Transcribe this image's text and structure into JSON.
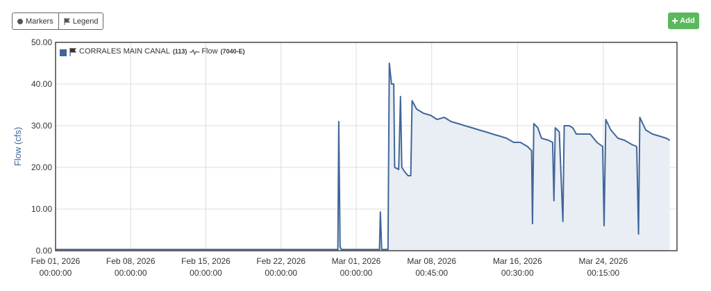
{
  "toolbar": {
    "markers": "Markers",
    "legend": "Legend",
    "add": "Add"
  },
  "chart_data": {
    "type": "line",
    "y_label": "Flow (cfs)",
    "xlim": [
      "2026-02-01T00:00",
      "2026-03-30T21:00"
    ],
    "xticks": [
      {
        "value": "2026-02-01T00:00",
        "label": [
          "Feb 01, 2026",
          "00:00:00"
        ]
      },
      {
        "value": "2026-02-08T00:00",
        "label": [
          "Feb 08, 2026",
          "00:00:00"
        ]
      },
      {
        "value": "2026-02-15T00:00",
        "label": [
          "Feb 15, 2026",
          "00:00:00"
        ]
      },
      {
        "value": "2026-02-22T00:00",
        "label": [
          "Feb 22, 2026",
          "00:00:00"
        ]
      },
      {
        "value": "2026-03-01T00:00",
        "label": [
          "Mar 01, 2026",
          "00:00:00"
        ]
      },
      {
        "value": "2026-03-08T00:45",
        "label": [
          "Mar 08, 2026",
          "00:45:00"
        ]
      },
      {
        "value": "2026-03-16T00:30",
        "label": [
          "Mar 16, 2026",
          "00:30:00"
        ]
      },
      {
        "value": "2026-03-24T00:15",
        "label": [
          "Mar 24, 2026",
          "00:15:00"
        ]
      }
    ],
    "ylim": [
      0,
      50
    ],
    "yticks": [
      {
        "value": 0,
        "label": "0.00"
      },
      {
        "value": 10,
        "label": "10.00"
      },
      {
        "value": 20,
        "label": "20.00"
      },
      {
        "value": 30,
        "label": "30.00"
      },
      {
        "value": 40,
        "label": "40.00"
      },
      {
        "value": 50,
        "label": "50.00"
      }
    ],
    "grid": true,
    "x": [
      "2026-02-01T00:00",
      "2026-02-27T07:00",
      "2026-02-27T09:00",
      "2026-02-27T12:00",
      "2026-02-27T15:00",
      "2026-03-03T04:00",
      "2026-03-03T06:00",
      "2026-03-03T09:00",
      "2026-03-03T23:00",
      "2026-03-04T02:00",
      "2026-03-04T07:00",
      "2026-03-04T12:00",
      "2026-03-04T14:00",
      "2026-03-04T23:00",
      "2026-03-05T03:00",
      "2026-03-05T06:00",
      "2026-03-05T12:00",
      "2026-03-05T20:00",
      "2026-03-06T02:00",
      "2026-03-06T05:00",
      "2026-03-06T15:00",
      "2026-03-07T06:00",
      "2026-03-07T22:00",
      "2026-03-08T13:00",
      "2026-03-09T05:00",
      "2026-03-09T20:00",
      "2026-03-10T12:00",
      "2026-03-11T03:00",
      "2026-03-11T19:00",
      "2026-03-12T10:00",
      "2026-03-13T02:00",
      "2026-03-13T17:00",
      "2026-03-14T09:00",
      "2026-03-15T00:00",
      "2026-03-15T16:00",
      "2026-03-16T07:00",
      "2026-03-16T23:00",
      "2026-03-17T08:00",
      "2026-03-17T10:00",
      "2026-03-17T13:00",
      "2026-03-17T22:00",
      "2026-03-18T06:00",
      "2026-03-18T22:00",
      "2026-03-19T07:00",
      "2026-03-19T10:00",
      "2026-03-19T13:00",
      "2026-03-19T22:00",
      "2026-03-20T06:00",
      "2026-03-20T09:00",
      "2026-03-20T20:00",
      "2026-03-21T04:00",
      "2026-03-21T12:00",
      "2026-03-22T03:00",
      "2026-03-22T19:00",
      "2026-03-23T10:00",
      "2026-03-23T23:00",
      "2026-03-24T02:00",
      "2026-03-24T06:00",
      "2026-03-24T17:00",
      "2026-03-25T09:00",
      "2026-03-26T00:00",
      "2026-03-26T16:00",
      "2026-03-27T03:00",
      "2026-03-27T07:00",
      "2026-03-27T10:00",
      "2026-03-27T23:00",
      "2026-03-28T14:00",
      "2026-03-29T06:00",
      "2026-03-29T21:00",
      "2026-03-30T05:00"
    ],
    "series": [
      {
        "name": "CORRALES MAIN CANAL",
        "site_id": "(113)",
        "parameter": "Flow",
        "parameter_code": "(7040-E)",
        "color": "#40669a",
        "fill": "#e9edf4",
        "values": [
          0.3,
          0.3,
          31,
          1,
          0.3,
          0.3,
          9.3,
          0.3,
          0.3,
          45,
          40,
          40,
          20,
          19.5,
          37,
          20,
          19,
          18,
          18,
          36,
          34,
          33,
          32.5,
          31.5,
          32,
          31,
          30.5,
          30,
          29.5,
          29,
          28.5,
          28,
          27.5,
          27,
          26,
          26,
          25,
          24,
          6.5,
          30.5,
          29.5,
          27,
          26.5,
          26,
          12,
          29.5,
          28.5,
          7,
          30,
          30,
          29.5,
          28,
          28,
          28,
          26,
          25,
          6,
          31.5,
          29,
          27,
          26.5,
          25.5,
          25,
          4,
          32,
          29,
          28,
          27.5,
          27,
          26.5
        ]
      }
    ]
  }
}
